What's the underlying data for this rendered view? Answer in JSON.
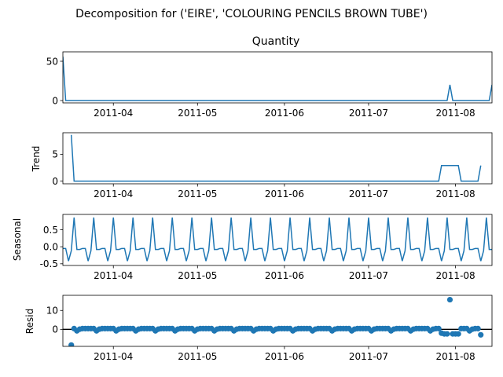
{
  "figure_title": "Decomposition for ('EIRE', 'COLOURING PENCILS BROWN TUBE')",
  "chart_data": [
    {
      "type": "line",
      "title": "Quantity",
      "ylabel": "",
      "x_ticks": [
        "2011-04",
        "2011-05",
        "2011-06",
        "2011-07",
        "2011-08"
      ],
      "y_ticks": [
        "0",
        "50"
      ],
      "ylim": [
        -3,
        62
      ],
      "series_color": "#1f77b4",
      "points": [
        [
          "2011-03-14",
          56
        ],
        [
          "2011-03-15",
          0
        ],
        [
          "2011-07-29",
          0
        ],
        [
          "2011-07-30",
          20
        ],
        [
          "2011-07-31",
          0
        ],
        [
          "2011-08-13",
          0
        ],
        [
          "2011-08-14",
          20
        ]
      ]
    },
    {
      "type": "line",
      "title": "",
      "ylabel": "Trend",
      "x_ticks": [
        "2011-04",
        "2011-05",
        "2011-06",
        "2011-07",
        "2011-08"
      ],
      "y_ticks": [
        "0",
        "5"
      ],
      "ylim": [
        -0.5,
        9
      ],
      "series_color": "#1f77b4",
      "points": [
        [
          "2011-03-17",
          8.6
        ],
        [
          "2011-03-18",
          0
        ],
        [
          "2011-07-26",
          0
        ],
        [
          "2011-07-27",
          2.9
        ],
        [
          "2011-08-02",
          2.9
        ],
        [
          "2011-08-03",
          0
        ],
        [
          "2011-08-09",
          0
        ],
        [
          "2011-08-10",
          2.9
        ]
      ]
    },
    {
      "type": "line",
      "title": "",
      "ylabel": "Seasonal",
      "x_ticks": [
        "2011-04",
        "2011-05",
        "2011-06",
        "2011-07",
        "2011-08"
      ],
      "y_ticks": [
        "0.5",
        "0.0",
        "-0.5"
      ],
      "ylim": [
        -0.55,
        0.95
      ],
      "series_color": "#1f77b4",
      "period_days": 7,
      "pattern": [
        -0.05,
        -0.05,
        -0.42,
        -0.12,
        0.86,
        -0.08,
        -0.08
      ],
      "start": "2011-03-14",
      "end": "2011-08-14"
    },
    {
      "type": "scatter",
      "title": "",
      "ylabel": "Resid",
      "x_ticks": [
        "2011-04",
        "2011-05",
        "2011-06",
        "2011-07",
        "2011-08"
      ],
      "y_ticks": [
        "0",
        "10"
      ],
      "ylim": [
        -9,
        18
      ],
      "series_color": "#1f77b4",
      "zero_line": true,
      "start": "2011-03-17",
      "end": "2011-08-10",
      "pattern": [
        0.4,
        0.4,
        -0.8,
        0.1,
        0.4,
        0.4,
        0.4
      ],
      "overrides": [
        [
          "2011-03-17",
          -8.3
        ],
        [
          "2011-07-27",
          -2.0
        ],
        [
          "2011-07-28",
          -2.4
        ],
        [
          "2011-07-29",
          -2.4
        ],
        [
          "2011-07-30",
          15.7
        ],
        [
          "2011-07-31",
          -2.4
        ],
        [
          "2011-08-01",
          -2.4
        ],
        [
          "2011-08-02",
          -2.4
        ],
        [
          "2011-08-10",
          -2.9
        ]
      ]
    }
  ]
}
